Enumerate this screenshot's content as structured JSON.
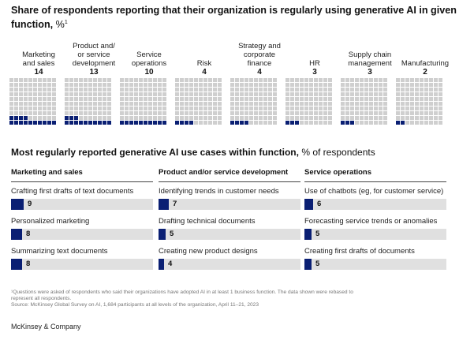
{
  "title": {
    "main": "Share of respondents reporting that their organization is regularly using generative AI in given function,",
    "unit": "%",
    "mark": "1"
  },
  "subtitle": {
    "main": "Most regularly reported generative AI use cases within function,",
    "unit": "% of respondents"
  },
  "chart_data": [
    {
      "type": "waffle",
      "title": "Share of respondents reporting that their organization is regularly using generative AI in given function, %",
      "categories": [
        "Marketing and sales",
        "Product and/ or service development",
        "Service operations",
        "Risk",
        "Strategy and corporate finance",
        "HR",
        "Supply chain management",
        "Manufacturing"
      ],
      "label_lines": [
        [
          "Marketing",
          "and sales"
        ],
        [
          "Product and/",
          "or service",
          "development"
        ],
        [
          "Service",
          "operations"
        ],
        [
          "Risk"
        ],
        [
          "Strategy and",
          "corporate",
          "finance"
        ],
        [
          "HR"
        ],
        [
          "Supply chain",
          "management"
        ],
        [
          "Manufacturing"
        ]
      ],
      "values": [
        14,
        13,
        10,
        4,
        4,
        3,
        3,
        2
      ],
      "total_per_grid": 100,
      "colors": {
        "filled": "#0a1f73",
        "empty": "#cfcfcf"
      }
    },
    {
      "type": "bar",
      "title": "Most regularly reported generative AI use cases within function, % of respondents",
      "panels": [
        {
          "name": "Marketing and sales",
          "categories": [
            "Crafting first drafts of text documents",
            "Personalized marketing",
            "Summarizing text documents"
          ],
          "values": [
            9,
            8,
            8
          ]
        },
        {
          "name": "Product and/or service development",
          "categories": [
            "Identifying trends in customer needs",
            "Drafting technical documents",
            "Creating new product designs"
          ],
          "values": [
            7,
            5,
            4
          ]
        },
        {
          "name": "Service operations",
          "categories": [
            "Use of chatbots (eg, for customer service)",
            "Forecasting service trends or anomalies",
            "Creating first drafts of documents"
          ],
          "values": [
            6,
            5,
            5
          ]
        }
      ],
      "xlim": [
        0,
        100
      ],
      "colors": {
        "bar": "#0a1f73",
        "track": "#e0e0e0"
      }
    }
  ],
  "footnote": {
    "line1": "¹Questions were asked of respondents who said their organizations have adopted AI in at least 1 business function. The data shown were rebased to",
    "line2": "represent all respondents.",
    "line3": "Source: McKinsey Global Survey on AI, 1,684 participants at all levels of the organization, April 11–21, 2023"
  },
  "brand": "McKinsey & Company"
}
